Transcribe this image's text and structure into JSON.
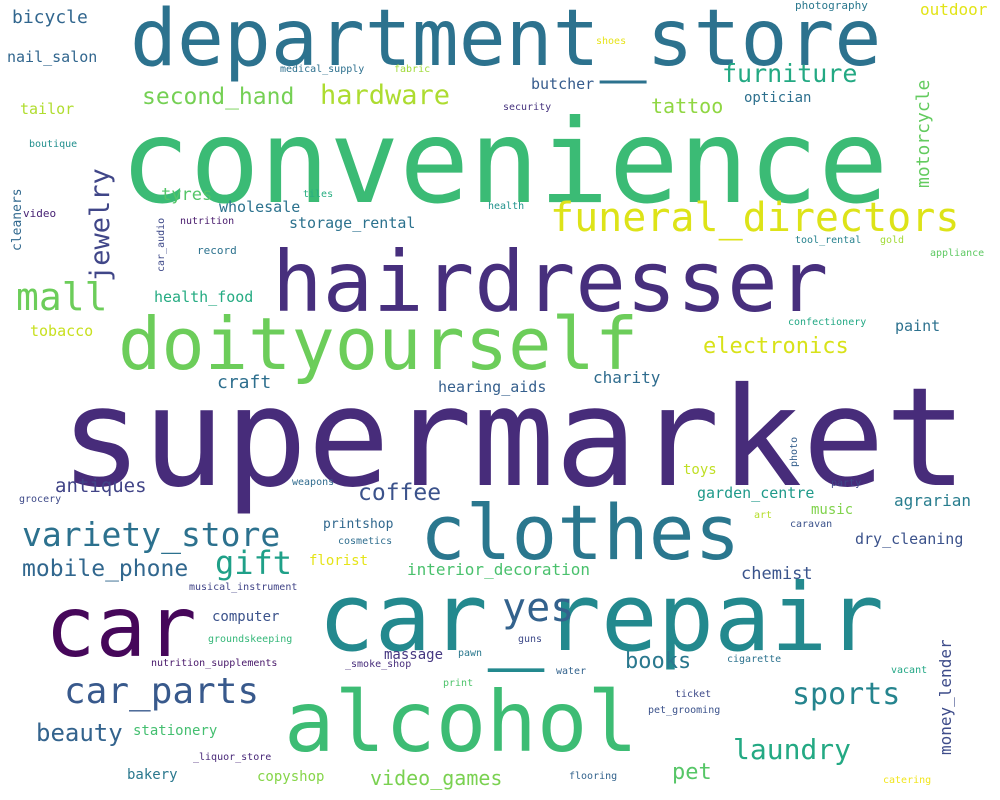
{
  "words": [
    {
      "text": "supermarket",
      "color": "#472c7a"
    },
    {
      "text": "convenience",
      "color": "#3bbb75"
    },
    {
      "text": "car_repair",
      "color": "#23898e"
    },
    {
      "text": "hairdresser",
      "color": "#472f7d"
    },
    {
      "text": "department_store",
      "color": "#2c728e"
    },
    {
      "text": "doityourself",
      "color": "#6ccd5a"
    },
    {
      "text": "alcohol",
      "color": "#3dbc74"
    },
    {
      "text": "clothes",
      "color": "#2a778e"
    },
    {
      "text": "car",
      "color": "#46075a"
    },
    {
      "text": "funeral_directors",
      "color": "#dde318"
    },
    {
      "text": "mall",
      "color": "#6ccd5a"
    },
    {
      "text": "car_parts",
      "color": "#38598c"
    },
    {
      "text": "variety_store",
      "color": "#2c718e"
    },
    {
      "text": "yes",
      "color": "#33628d"
    },
    {
      "text": "gift",
      "color": "#1fa088"
    },
    {
      "text": "sports",
      "color": "#25848e"
    },
    {
      "text": "laundry",
      "color": "#23a983"
    },
    {
      "text": "jewelry",
      "color": "#404688"
    },
    {
      "text": "hardware",
      "color": "#addc30"
    },
    {
      "text": "mobile_phone",
      "color": "#31678e"
    },
    {
      "text": "furniture",
      "color": "#23a983"
    },
    {
      "text": "second_hand",
      "color": "#75d054"
    },
    {
      "text": "beauty",
      "color": "#33638d"
    },
    {
      "text": "coffee",
      "color": "#3b528b"
    },
    {
      "text": "electronics",
      "color": "#d8e219"
    },
    {
      "text": "books",
      "color": "#2a788e"
    },
    {
      "text": "antiques",
      "color": "#414487"
    },
    {
      "text": "pet",
      "color": "#56c667"
    },
    {
      "text": "video_games",
      "color": "#7ad151"
    },
    {
      "text": "tattoo",
      "color": "#90d743"
    },
    {
      "text": "motorcycle",
      "color": "#63cb5f"
    },
    {
      "text": "money_lender",
      "color": "#3e4c8a"
    },
    {
      "text": "craft",
      "color": "#2e6f8e"
    },
    {
      "text": "bicycle",
      "color": "#31668e"
    },
    {
      "text": "outdoor",
      "color": "#e2e418"
    },
    {
      "text": "tyres",
      "color": "#54c568"
    },
    {
      "text": "hearing_aids",
      "color": "#355f8d"
    },
    {
      "text": "charity",
      "color": "#2f6c8e"
    },
    {
      "text": "interior_decoration",
      "color": "#4ac16d"
    },
    {
      "text": "chemist",
      "color": "#3a548c"
    },
    {
      "text": "tailor",
      "color": "#b0dd2f"
    },
    {
      "text": "nail_salon",
      "color": "#31668e"
    },
    {
      "text": "wholesale",
      "color": "#2c728e"
    },
    {
      "text": "storage_rental",
      "color": "#2c728e"
    },
    {
      "text": "health_food",
      "color": "#25ab82"
    },
    {
      "text": "tobacco",
      "color": "#c8e020"
    },
    {
      "text": "butcher",
      "color": "#365c8d"
    },
    {
      "text": "optician",
      "color": "#2d708e"
    },
    {
      "text": "agrarian",
      "color": "#287d8e"
    },
    {
      "text": "dry_cleaning",
      "color": "#3b528b"
    },
    {
      "text": "garden_centre",
      "color": "#1f9a8a"
    },
    {
      "text": "toys",
      "color": "#c0df25"
    },
    {
      "text": "music",
      "color": "#81d34d"
    },
    {
      "text": "printshop",
      "color": "#31688e"
    },
    {
      "text": "florist",
      "color": "#e5e419"
    },
    {
      "text": "massage",
      "color": "#453781"
    },
    {
      "text": "computer",
      "color": "#3b528b"
    },
    {
      "text": "stationery",
      "color": "#44bf70"
    },
    {
      "text": "bakery",
      "color": "#2a788e"
    },
    {
      "text": "copyshop",
      "color": "#86d549"
    },
    {
      "text": "paint",
      "color": "#2d718e"
    },
    {
      "text": "cleaners",
      "color": "#31688e"
    },
    {
      "text": "photography",
      "color": "#2a788e"
    },
    {
      "text": "medical_supply",
      "color": "#2d708e"
    },
    {
      "text": "fabric",
      "color": "#a0da39"
    },
    {
      "text": "shoes",
      "color": "#e7e419"
    },
    {
      "text": "boutique",
      "color": "#218f8d"
    },
    {
      "text": "security",
      "color": "#46337e"
    },
    {
      "text": "video",
      "color": "#482374"
    },
    {
      "text": "nutrition",
      "color": "#481a6c"
    },
    {
      "text": "car_audio",
      "color": "#3e4989"
    },
    {
      "text": "tiles",
      "color": "#27ad81"
    },
    {
      "text": "record",
      "color": "#2c728e"
    },
    {
      "text": "health",
      "color": "#20928c"
    },
    {
      "text": "tool_rental",
      "color": "#26828e"
    },
    {
      "text": "gold",
      "color": "#a2da37"
    },
    {
      "text": "appliance",
      "color": "#5ec962"
    },
    {
      "text": "confectionery",
      "color": "#22a884"
    },
    {
      "text": "photo",
      "color": "#355f8d"
    },
    {
      "text": "grocery",
      "color": "#3e4a89"
    },
    {
      "text": "weapons",
      "color": "#2f6b8e"
    },
    {
      "text": "party",
      "color": "#3f4889"
    },
    {
      "text": "art",
      "color": "#b5de2b"
    },
    {
      "text": "caravan",
      "color": "#3b528b"
    },
    {
      "text": "cosmetics",
      "color": "#2e6d8e"
    },
    {
      "text": "musical_instrument",
      "color": "#414487"
    },
    {
      "text": "groundskeeping",
      "color": "#35b779"
    },
    {
      "text": "guns",
      "color": "#3e4a89"
    },
    {
      "text": "nutrition_supplements",
      "color": "#48186a"
    },
    {
      "text": "_smoke_shop",
      "color": "#472d7b"
    },
    {
      "text": "pawn",
      "color": "#2a788e"
    },
    {
      "text": "cigarette",
      "color": "#2c728e"
    },
    {
      "text": "water",
      "color": "#33638d"
    },
    {
      "text": "vacant",
      "color": "#22a785"
    },
    {
      "text": "print",
      "color": "#4ec36b"
    },
    {
      "text": "ticket",
      "color": "#3e4a89"
    },
    {
      "text": "pet_grooming",
      "color": "#3b528b"
    },
    {
      "text": "_liquor_store",
      "color": "#482878"
    },
    {
      "text": "flooring",
      "color": "#33638d"
    },
    {
      "text": "catering",
      "color": "#f1e51d"
    }
  ]
}
